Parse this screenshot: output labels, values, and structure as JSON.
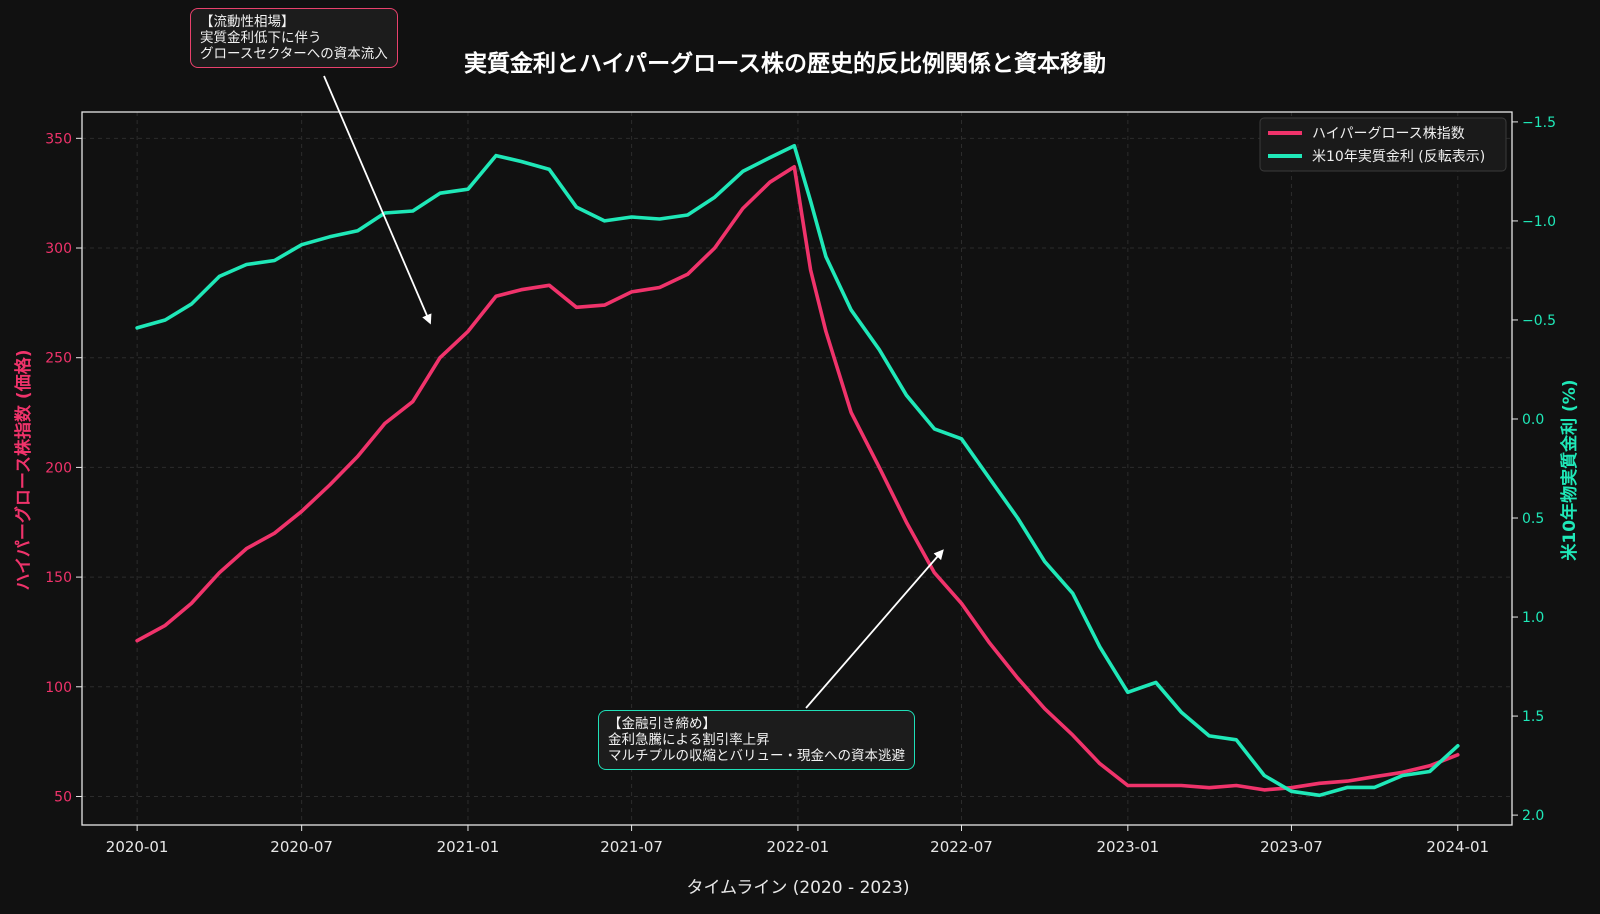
{
  "chart_data": {
    "type": "line",
    "title": "実質金利とハイパーグロース株の歴史的反比例関係と資本移動",
    "xlabel": "タイムライン (2020 - 2023)",
    "ylabel_left": "ハイパーグロース株指数 (価格)",
    "ylabel_right": "米10年物実質金利 (%)",
    "x_ticks": [
      "2020-01",
      "2020-07",
      "2021-01",
      "2021-07",
      "2022-01",
      "2022-07",
      "2023-01",
      "2023-07",
      "2024-01"
    ],
    "y_left_ticks": [
      "50",
      "100",
      "150",
      "200",
      "250",
      "300",
      "350"
    ],
    "y_right_ticks": [
      "−1.5",
      "−1.0",
      "−0.5",
      "0.0",
      "0.5",
      "1.0",
      "1.5",
      "2.0"
    ],
    "y_left_lim": [
      37,
      362
    ],
    "y_right_lim": [
      2.05,
      -1.55
    ],
    "y_right_inverted": true,
    "grid": true,
    "legend_position": "top-right",
    "series": [
      {
        "name": "ハイパーグロース株指数",
        "axis": "left",
        "color": "#f0336b",
        "points": [
          [
            "2020-01-01",
            121
          ],
          [
            "2020-02-01",
            128
          ],
          [
            "2020-03-01",
            138
          ],
          [
            "2020-04-01",
            152
          ],
          [
            "2020-05-01",
            163
          ],
          [
            "2020-06-01",
            170
          ],
          [
            "2020-07-01",
            180
          ],
          [
            "2020-08-01",
            192
          ],
          [
            "2020-09-01",
            205
          ],
          [
            "2020-10-01",
            220
          ],
          [
            "2020-11-01",
            230
          ],
          [
            "2020-12-01",
            250
          ],
          [
            "2021-01-01",
            262
          ],
          [
            "2021-02-01",
            278
          ],
          [
            "2021-03-01",
            281
          ],
          [
            "2021-04-01",
            283
          ],
          [
            "2021-05-01",
            273
          ],
          [
            "2021-06-01",
            274
          ],
          [
            "2021-07-01",
            280
          ],
          [
            "2021-08-01",
            282
          ],
          [
            "2021-09-01",
            288
          ],
          [
            "2021-10-01",
            300
          ],
          [
            "2021-11-01",
            318
          ],
          [
            "2021-12-01",
            330
          ],
          [
            "2021-12-28",
            337
          ],
          [
            "2022-01-15",
            290
          ],
          [
            "2022-02-01",
            262
          ],
          [
            "2022-03-01",
            225
          ],
          [
            "2022-04-01",
            200
          ],
          [
            "2022-05-01",
            175
          ],
          [
            "2022-06-01",
            152
          ],
          [
            "2022-07-01",
            138
          ],
          [
            "2022-08-01",
            120
          ],
          [
            "2022-09-01",
            104
          ],
          [
            "2022-10-01",
            90
          ],
          [
            "2022-11-01",
            78
          ],
          [
            "2022-12-01",
            65
          ],
          [
            "2023-01-01",
            55
          ],
          [
            "2023-02-01",
            55
          ],
          [
            "2023-03-01",
            55
          ],
          [
            "2023-04-01",
            54
          ],
          [
            "2023-05-01",
            55
          ],
          [
            "2023-06-01",
            53
          ],
          [
            "2023-07-01",
            54
          ],
          [
            "2023-08-01",
            56
          ],
          [
            "2023-09-01",
            57
          ],
          [
            "2023-10-01",
            59
          ],
          [
            "2023-11-01",
            61
          ],
          [
            "2023-12-01",
            64
          ],
          [
            "2024-01-01",
            69
          ]
        ]
      },
      {
        "name": "米10年実質金利 (反転表示)",
        "axis": "right",
        "color": "#1fe8b8",
        "points": [
          [
            "2020-01-01",
            -0.46
          ],
          [
            "2020-02-01",
            -0.5
          ],
          [
            "2020-03-01",
            -0.58
          ],
          [
            "2020-04-01",
            -0.72
          ],
          [
            "2020-05-01",
            -0.78
          ],
          [
            "2020-06-01",
            -0.8
          ],
          [
            "2020-07-01",
            -0.88
          ],
          [
            "2020-08-01",
            -0.92
          ],
          [
            "2020-09-01",
            -0.95
          ],
          [
            "2020-10-01",
            -1.04
          ],
          [
            "2020-11-01",
            -1.05
          ],
          [
            "2020-12-01",
            -1.14
          ],
          [
            "2021-01-01",
            -1.16
          ],
          [
            "2021-02-01",
            -1.33
          ],
          [
            "2021-03-01",
            -1.3
          ],
          [
            "2021-04-01",
            -1.26
          ],
          [
            "2021-05-01",
            -1.07
          ],
          [
            "2021-06-01",
            -1.0
          ],
          [
            "2021-07-01",
            -1.02
          ],
          [
            "2021-08-01",
            -1.01
          ],
          [
            "2021-09-01",
            -1.03
          ],
          [
            "2021-10-01",
            -1.12
          ],
          [
            "2021-11-01",
            -1.25
          ],
          [
            "2021-12-01",
            -1.32
          ],
          [
            "2021-12-28",
            -1.38
          ],
          [
            "2022-01-15",
            -1.1
          ],
          [
            "2022-02-01",
            -0.82
          ],
          [
            "2022-03-01",
            -0.55
          ],
          [
            "2022-04-01",
            -0.35
          ],
          [
            "2022-05-01",
            -0.12
          ],
          [
            "2022-06-01",
            0.05
          ],
          [
            "2022-07-01",
            0.1
          ],
          [
            "2022-08-01",
            0.3
          ],
          [
            "2022-09-01",
            0.5
          ],
          [
            "2022-10-01",
            0.72
          ],
          [
            "2022-11-01",
            0.88
          ],
          [
            "2022-12-01",
            1.15
          ],
          [
            "2023-01-01",
            1.38
          ],
          [
            "2023-02-01",
            1.33
          ],
          [
            "2023-03-01",
            1.48
          ],
          [
            "2023-04-01",
            1.6
          ],
          [
            "2023-05-01",
            1.62
          ],
          [
            "2023-06-01",
            1.8
          ],
          [
            "2023-07-01",
            1.88
          ],
          [
            "2023-08-01",
            1.9
          ],
          [
            "2023-09-01",
            1.86
          ],
          [
            "2023-10-01",
            1.86
          ],
          [
            "2023-11-01",
            1.8
          ],
          [
            "2023-12-01",
            1.78
          ],
          [
            "2024-01-01",
            1.65
          ]
        ]
      }
    ],
    "annotations": [
      {
        "id": "ann_top",
        "lines": [
          "【流動性相場】",
          "実質金利低下に伴う",
          "グロースセクターへの資本流入"
        ],
        "arrow_to": [
          "2020-11-20",
          266
        ],
        "border_color": "#e8416c"
      },
      {
        "id": "ann_bottom",
        "lines": [
          "【金融引き締め】",
          "金利急騰による割引率上昇",
          "マルチプルの収縮とバリュー・現金への資本逃避"
        ],
        "arrow_to": [
          "2022-06-10",
          162
        ],
        "border_color": "#1fe0b8"
      }
    ]
  },
  "colors": {
    "background": "#111111",
    "stock": "#f0336b",
    "rate": "#1fe8b8",
    "grid": "#2c2c2c",
    "axis": "#e8e8e8"
  }
}
